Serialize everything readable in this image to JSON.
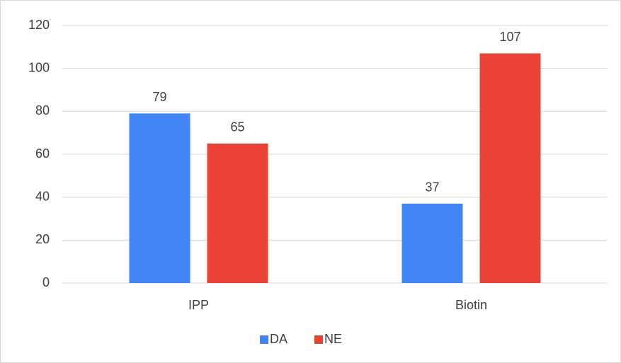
{
  "chart_data": {
    "type": "bar",
    "categories": [
      "IPP",
      "Biotin"
    ],
    "series": [
      {
        "name": "DA",
        "color": "#4285f4",
        "values": [
          79,
          37
        ]
      },
      {
        "name": "NE",
        "color": "#ea4335",
        "values": [
          65,
          107
        ]
      }
    ],
    "ylim": [
      0,
      120
    ],
    "yticks": [
      0,
      20,
      40,
      60,
      80,
      100,
      120
    ],
    "grid": true,
    "legend": "bottom"
  }
}
